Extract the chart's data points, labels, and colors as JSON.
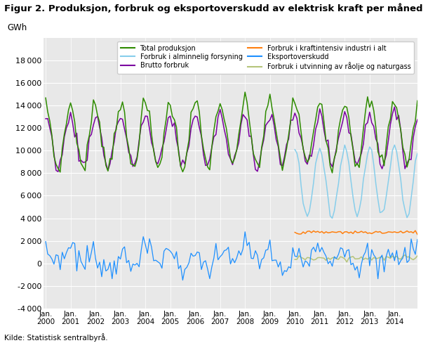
{
  "title": "Figur 2. Produksjon, forbruk og eksportoverskudd av elektrisk kraft per måned",
  "ylabel": "GWh",
  "source": "Kilde: Statistisk sentralbyrå.",
  "ylim": [
    -4000,
    20000
  ],
  "yticks": [
    -4000,
    -2000,
    0,
    2000,
    4000,
    6000,
    8000,
    10000,
    12000,
    14000,
    16000,
    18000
  ],
  "colors": {
    "total_prod": "#2e8b00",
    "brutto_forbruk": "#7b00a0",
    "eksportoverskudd": "#1e90ff",
    "forbruk_alm": "#87ceeb",
    "forbruk_kraftintensiv": "#ff7f0e",
    "forbruk_olje": "#b5c47a"
  },
  "legend_labels": [
    "Total produksjon",
    "Brutto forbruk",
    "Eksportoverskudd",
    "Forbruk i alminnelig forsyning",
    "Forbruk i kraftintensiv industri i alt",
    "Forbruk i utvinning av råolje og naturgass"
  ],
  "background_color": "#e8e8e8",
  "figsize": [
    6.1,
    4.88
  ],
  "dpi": 100
}
